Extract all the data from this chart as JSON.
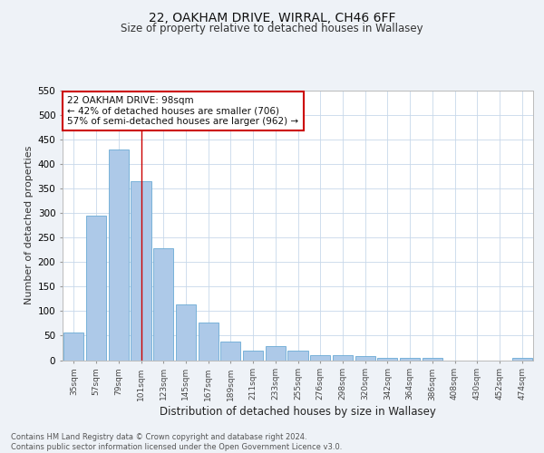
{
  "title": "22, OAKHAM DRIVE, WIRRAL, CH46 6FF",
  "subtitle": "Size of property relative to detached houses in Wallasey",
  "xlabel": "Distribution of detached houses by size in Wallasey",
  "ylabel": "Number of detached properties",
  "categories": [
    "35sqm",
    "57sqm",
    "79sqm",
    "101sqm",
    "123sqm",
    "145sqm",
    "167sqm",
    "189sqm",
    "211sqm",
    "233sqm",
    "255sqm",
    "276sqm",
    "298sqm",
    "320sqm",
    "342sqm",
    "364sqm",
    "386sqm",
    "408sqm",
    "430sqm",
    "452sqm",
    "474sqm"
  ],
  "values": [
    57,
    295,
    430,
    365,
    228,
    113,
    76,
    38,
    20,
    28,
    20,
    10,
    10,
    8,
    5,
    5,
    5,
    0,
    0,
    0,
    5
  ],
  "bar_color": "#adc9e8",
  "bar_edge_color": "#6aaad4",
  "vline_x": 3,
  "vline_color": "#cc0000",
  "annotation_text": "22 OAKHAM DRIVE: 98sqm\n← 42% of detached houses are smaller (706)\n57% of semi-detached houses are larger (962) →",
  "annotation_box_color": "#ffffff",
  "annotation_box_edgecolor": "#cc0000",
  "ylim": [
    0,
    550
  ],
  "yticks": [
    0,
    50,
    100,
    150,
    200,
    250,
    300,
    350,
    400,
    450,
    500,
    550
  ],
  "footer_text": "Contains HM Land Registry data © Crown copyright and database right 2024.\nContains public sector information licensed under the Open Government Licence v3.0.",
  "bg_color": "#eef2f7",
  "plot_bg_color": "#ffffff",
  "grid_color": "#c8d8ea"
}
